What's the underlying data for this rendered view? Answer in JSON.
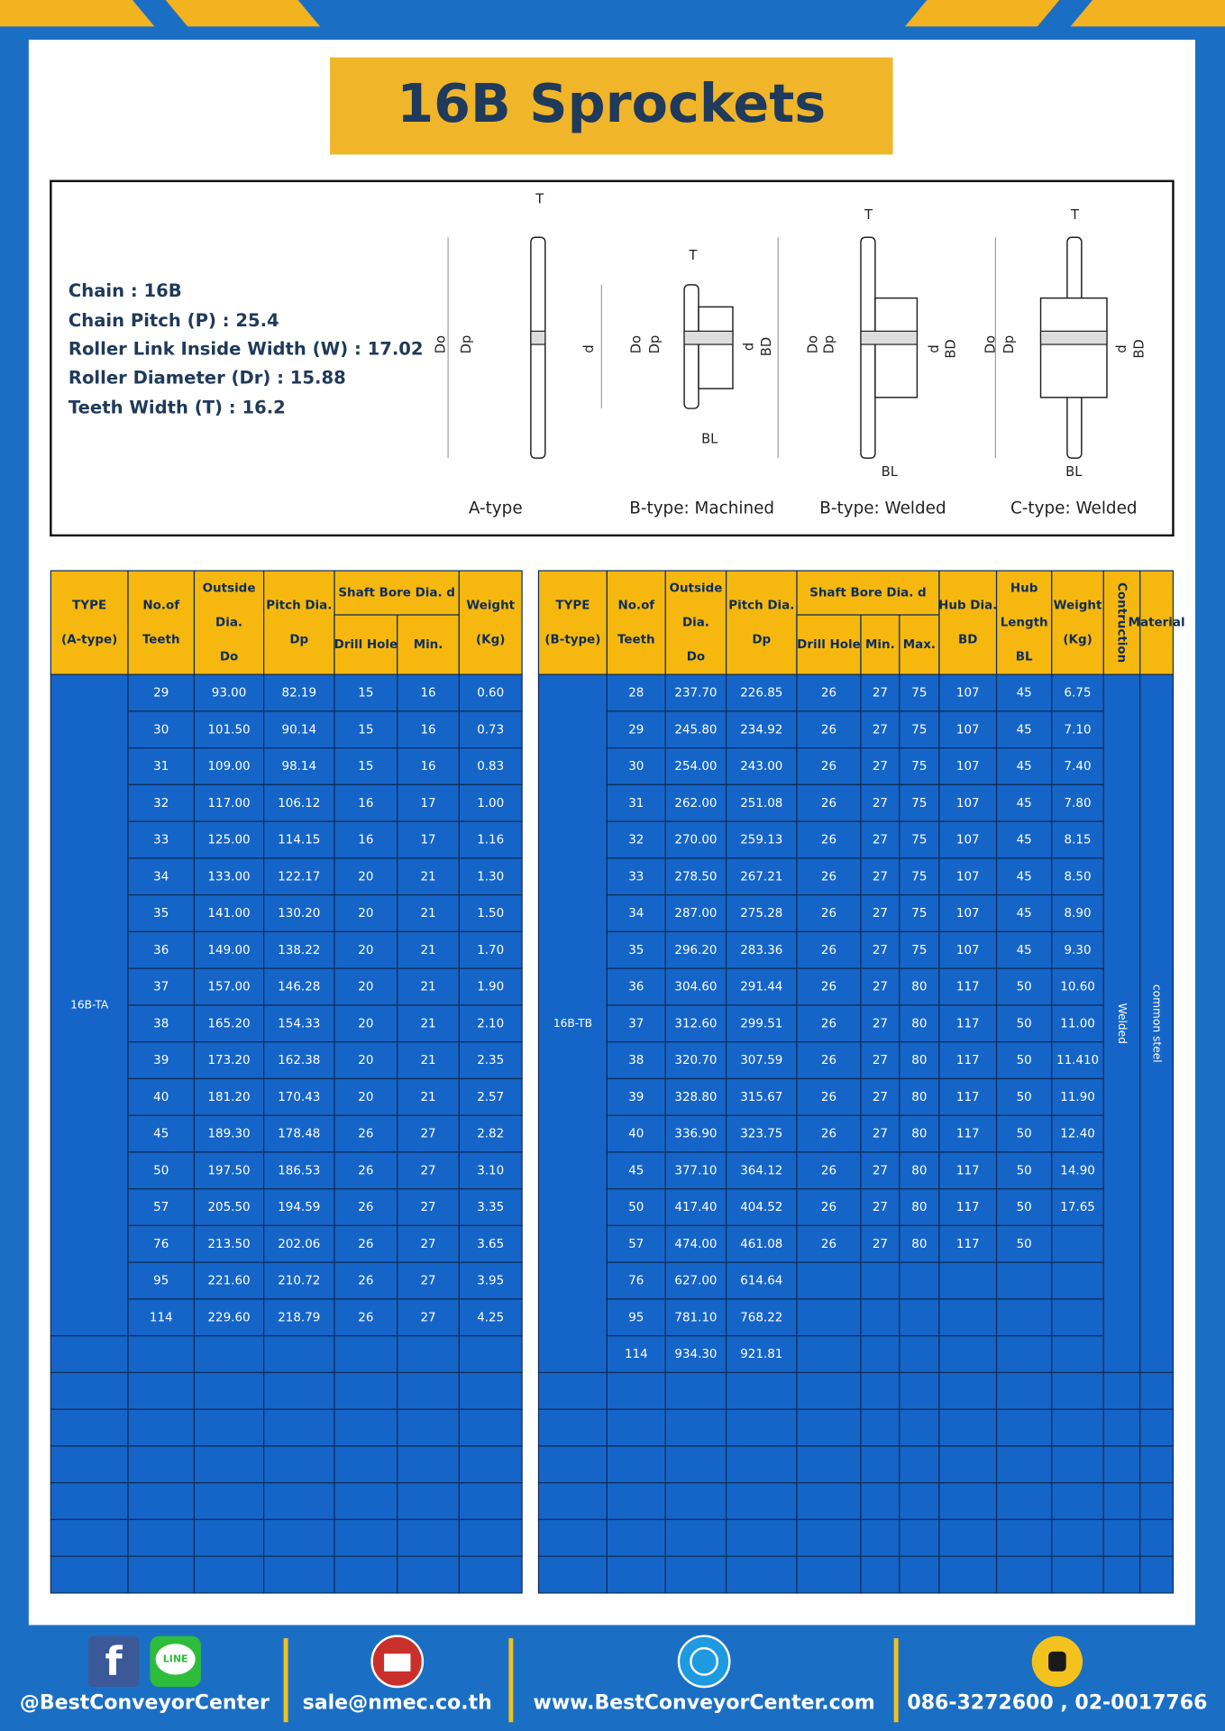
{
  "header": {
    "title": "16B Sprockets"
  },
  "specs": [
    "Chain  :  16B",
    "Chain Pitch (P)  :  25.4",
    "Roller Link Inside Width (W)  :  17.02",
    "Roller Diameter (Dr)  : 15.88",
    "Teeth Width (T)  :  16.2"
  ],
  "diagrams": [
    {
      "caption": "A-type",
      "labels": [
        "T",
        "Do",
        "Dp",
        "d"
      ]
    },
    {
      "caption": "B-type: Machined",
      "labels": [
        "T",
        "Do",
        "Dp",
        "d",
        "BD",
        "BL"
      ]
    },
    {
      "caption": "B-type: Welded",
      "labels": [
        "T",
        "Do",
        "Dp",
        "d",
        "BD",
        "BL"
      ]
    },
    {
      "caption": "C-type: Welded",
      "labels": [
        "T",
        "Do",
        "Dp",
        "d",
        "BD",
        "BL"
      ]
    }
  ],
  "table_a": {
    "group_header": "Shaft Bore Dia. d",
    "headers": [
      [
        "TYPE",
        "(A-type)"
      ],
      [
        "No.of",
        "Teeth"
      ],
      [
        "Outside",
        "Dia.",
        "Do"
      ],
      [
        "Pitch Dia.",
        "Dp"
      ],
      [
        "Drill Hole"
      ],
      [
        "Min."
      ],
      [
        "Weight",
        "(Kg)"
      ]
    ],
    "type": "16B-TA",
    "rows": [
      [
        "29",
        "93.00",
        "82.19",
        "15",
        "16",
        "0.60"
      ],
      [
        "30",
        "101.50",
        "90.14",
        "15",
        "16",
        "0.73"
      ],
      [
        "31",
        "109.00",
        "98.14",
        "15",
        "16",
        "0.83"
      ],
      [
        "32",
        "117.00",
        "106.12",
        "16",
        "17",
        "1.00"
      ],
      [
        "33",
        "125.00",
        "114.15",
        "16",
        "17",
        "1.16"
      ],
      [
        "34",
        "133.00",
        "122.17",
        "20",
        "21",
        "1.30"
      ],
      [
        "35",
        "141.00",
        "130.20",
        "20",
        "21",
        "1.50"
      ],
      [
        "36",
        "149.00",
        "138.22",
        "20",
        "21",
        "1.70"
      ],
      [
        "37",
        "157.00",
        "146.28",
        "20",
        "21",
        "1.90"
      ],
      [
        "38",
        "165.20",
        "154.33",
        "20",
        "21",
        "2.10"
      ],
      [
        "39",
        "173.20",
        "162.38",
        "20",
        "21",
        "2.35"
      ],
      [
        "40",
        "181.20",
        "170.43",
        "20",
        "21",
        "2.57"
      ],
      [
        "45",
        "189.30",
        "178.48",
        "26",
        "27",
        "2.82"
      ],
      [
        "50",
        "197.50",
        "186.53",
        "26",
        "27",
        "3.10"
      ],
      [
        "57",
        "205.50",
        "194.59",
        "26",
        "27",
        "3.35"
      ],
      [
        "76",
        "213.50",
        "202.06",
        "26",
        "27",
        "3.65"
      ],
      [
        "95",
        "221.60",
        "210.72",
        "26",
        "27",
        "3.95"
      ],
      [
        "114",
        "229.60",
        "218.79",
        "26",
        "27",
        "4.25"
      ]
    ]
  },
  "table_b": {
    "group_header": "Shaft Bore Dia. d",
    "headers": [
      [
        "TYPE",
        "(B-type)"
      ],
      [
        "No.of",
        "Teeth"
      ],
      [
        "Outside",
        "Dia.",
        "Do"
      ],
      [
        "Pitch Dia.",
        "Dp"
      ],
      [
        "Drill Hole"
      ],
      [
        "Min."
      ],
      [
        "Max."
      ],
      [
        "Hub Dia.",
        "BD"
      ],
      [
        "Hub",
        "Length",
        "BL"
      ],
      [
        "Weight",
        "(Kg)"
      ],
      [
        "Contruction"
      ],
      [
        "Material"
      ]
    ],
    "type": "16B-TB",
    "construction": "Welded",
    "material": "common steel",
    "rows": [
      [
        "28",
        "237.70",
        "226.85",
        "26",
        "27",
        "75",
        "107",
        "45",
        "6.75"
      ],
      [
        "29",
        "245.80",
        "234.92",
        "26",
        "27",
        "75",
        "107",
        "45",
        "7.10"
      ],
      [
        "30",
        "254.00",
        "243.00",
        "26",
        "27",
        "75",
        "107",
        "45",
        "7.40"
      ],
      [
        "31",
        "262.00",
        "251.08",
        "26",
        "27",
        "75",
        "107",
        "45",
        "7.80"
      ],
      [
        "32",
        "270.00",
        "259.13",
        "26",
        "27",
        "75",
        "107",
        "45",
        "8.15"
      ],
      [
        "33",
        "278.50",
        "267.21",
        "26",
        "27",
        "75",
        "107",
        "45",
        "8.50"
      ],
      [
        "34",
        "287.00",
        "275.28",
        "26",
        "27",
        "75",
        "107",
        "45",
        "8.90"
      ],
      [
        "35",
        "296.20",
        "283.36",
        "26",
        "27",
        "75",
        "107",
        "45",
        "9.30"
      ],
      [
        "36",
        "304.60",
        "291.44",
        "26",
        "27",
        "80",
        "117",
        "50",
        "10.60"
      ],
      [
        "37",
        "312.60",
        "299.51",
        "26",
        "27",
        "80",
        "117",
        "50",
        "11.00"
      ],
      [
        "38",
        "320.70",
        "307.59",
        "26",
        "27",
        "80",
        "117",
        "50",
        "11.410"
      ],
      [
        "39",
        "328.80",
        "315.67",
        "26",
        "27",
        "80",
        "117",
        "50",
        "11.90"
      ],
      [
        "40",
        "336.90",
        "323.75",
        "26",
        "27",
        "80",
        "117",
        "50",
        "12.40"
      ],
      [
        "45",
        "377.10",
        "364.12",
        "26",
        "27",
        "80",
        "117",
        "50",
        "14.90"
      ],
      [
        "50",
        "417.40",
        "404.52",
        "26",
        "27",
        "80",
        "117",
        "50",
        "17.65"
      ],
      [
        "57",
        "474.00",
        "461.08",
        "26",
        "27",
        "80",
        "117",
        "50",
        null
      ],
      [
        "76",
        "627.00",
        "614.64",
        null,
        null,
        null,
        null,
        null,
        null
      ],
      [
        "95",
        "781.10",
        "768.22",
        null,
        null,
        null,
        null,
        null,
        null
      ],
      [
        "114",
        "934.30",
        "921.81",
        null,
        null,
        null,
        null,
        null,
        null
      ]
    ]
  },
  "footer": {
    "icons": {
      "facebook": "f",
      "line": "LINE"
    },
    "social": "@BestConveyorCenter",
    "email": "sale@nmec.co.th",
    "website": "www.BestConveyorCenter.com",
    "phone": "086-3272600 , 02-0017766"
  }
}
